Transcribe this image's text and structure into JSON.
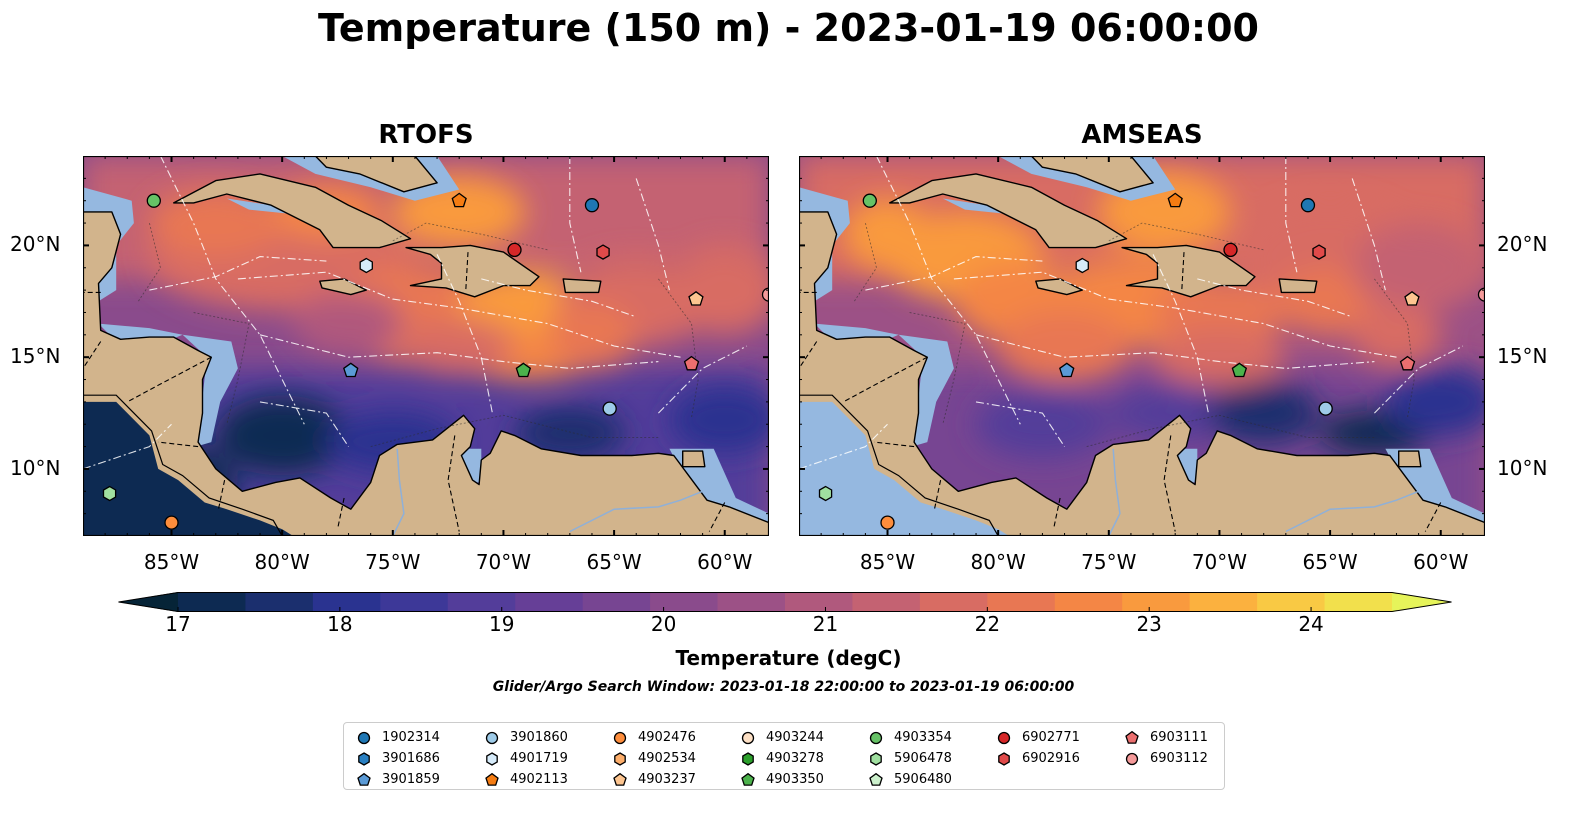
{
  "title": "Temperature (150 m) - 2023-01-19 06:00:00",
  "panels": [
    {
      "title": "RTOFS",
      "variant": "rtofs"
    },
    {
      "title": "AMSEAS",
      "variant": "amseas"
    }
  ],
  "map_axes": {
    "lon_range": [
      -89,
      -58
    ],
    "lat_range": [
      7,
      24
    ],
    "lon_ticks": [
      {
        "lon": -85,
        "label": "85°W"
      },
      {
        "lon": -80,
        "label": "80°W"
      },
      {
        "lon": -75,
        "label": "75°W"
      },
      {
        "lon": -70,
        "label": "70°W"
      },
      {
        "lon": -65,
        "label": "65°W"
      },
      {
        "lon": -60,
        "label": "60°W"
      }
    ],
    "lat_ticks": [
      {
        "lat": 20,
        "label": "20°N"
      },
      {
        "lat": 15,
        "label": "15°N"
      },
      {
        "lat": 10,
        "label": "10°N"
      }
    ]
  },
  "colorbar": {
    "title": "Temperature (degC)",
    "vmin": 17,
    "vmax": 24.5,
    "step": 0.5,
    "extend": "both",
    "ticks": [
      {
        "value": 17,
        "label": "17"
      },
      {
        "value": 18,
        "label": "18"
      },
      {
        "value": 19,
        "label": "19"
      },
      {
        "value": 20,
        "label": "20"
      },
      {
        "value": 21,
        "label": "21"
      },
      {
        "value": 22,
        "label": "22"
      },
      {
        "value": 23,
        "label": "23"
      },
      {
        "value": 24,
        "label": "24"
      }
    ],
    "colors": [
      "#062437",
      "#0d2a52",
      "#1b2f6e",
      "#2a3390",
      "#3d3898",
      "#533d9a",
      "#663f97",
      "#774592",
      "#8a4b8c",
      "#9c5186",
      "#b0597d",
      "#c46272",
      "#d86c63",
      "#e87753",
      "#f48645",
      "#f99a3e",
      "#fbb13f",
      "#f9c944",
      "#f2e04c",
      "#e6f45a"
    ]
  },
  "colors": {
    "land": "#d2b48c",
    "shelf": "#95b8e0",
    "coast": "#000000",
    "boundary": "#ffffff"
  },
  "search_window": "Glider/Argo Search Window: 2023-01-18 22:00:00 to 2023-01-19 06:00:00",
  "legend": {
    "columns": [
      [
        {
          "id": "1902314",
          "marker": "circle",
          "color": "#1f77b4"
        },
        {
          "id": "3901686",
          "marker": "hexagon",
          "color": "#2a80c2"
        },
        {
          "id": "3901859",
          "marker": "pentagon",
          "color": "#5a9ad6"
        }
      ],
      [
        {
          "id": "3901860",
          "marker": "circle",
          "color": "#9ecbe8"
        },
        {
          "id": "4901719",
          "marker": "hexagon",
          "color": "#d6ebfa"
        },
        {
          "id": "4902113",
          "marker": "pentagon",
          "color": "#f57c12"
        }
      ],
      [
        {
          "id": "4902476",
          "marker": "circle",
          "color": "#fd8d3c"
        },
        {
          "id": "4902534",
          "marker": "hexagon",
          "color": "#fdae6b"
        },
        {
          "id": "4903237",
          "marker": "pentagon",
          "color": "#fdc590"
        }
      ],
      [
        {
          "id": "4903244",
          "marker": "circle",
          "color": "#fde0c5"
        },
        {
          "id": "4903278",
          "marker": "hexagon",
          "color": "#2ca02c"
        },
        {
          "id": "4903350",
          "marker": "pentagon",
          "color": "#4cb24c"
        }
      ],
      [
        {
          "id": "4903354",
          "marker": "circle",
          "color": "#66c266"
        },
        {
          "id": "5906478",
          "marker": "hexagon",
          "color": "#a0e0a0"
        },
        {
          "id": "5906480",
          "marker": "pentagon",
          "color": "#ccf0cc"
        }
      ],
      [
        {
          "id": "6902771",
          "marker": "circle",
          "color": "#d62728"
        },
        {
          "id": "6902916",
          "marker": "hexagon",
          "color": "#e04a4a"
        }
      ],
      [
        {
          "id": "6903111",
          "marker": "pentagon",
          "color": "#eb6f6f"
        },
        {
          "id": "6903112",
          "marker": "circle",
          "color": "#f59a9a"
        }
      ]
    ]
  },
  "floats": [
    {
      "id": "4903354",
      "lon": -85.8,
      "lat": 22.0,
      "marker": "circle",
      "color": "#66c266"
    },
    {
      "id": "4902113",
      "lon": -72.0,
      "lat": 22.0,
      "marker": "pentagon",
      "color": "#f57c12"
    },
    {
      "id": "1902314",
      "lon": -66.0,
      "lat": 21.8,
      "marker": "circle",
      "color": "#1f77b4"
    },
    {
      "id": "6902771",
      "lon": -69.5,
      "lat": 19.8,
      "marker": "circle",
      "color": "#d62728"
    },
    {
      "id": "6902916",
      "lon": -65.5,
      "lat": 19.7,
      "marker": "hexagon",
      "color": "#e04a4a"
    },
    {
      "id": "4901719",
      "lon": -76.2,
      "lat": 19.1,
      "marker": "hexagon",
      "color": "#d6ebfa"
    },
    {
      "id": "4903237",
      "lon": -61.3,
      "lat": 17.6,
      "marker": "pentagon",
      "color": "#fdc590"
    },
    {
      "id": "6903112",
      "lon": -58.0,
      "lat": 17.8,
      "marker": "circle",
      "color": "#f59a9a"
    },
    {
      "id": "6903111",
      "lon": -61.5,
      "lat": 14.7,
      "marker": "pentagon",
      "color": "#eb6f6f"
    },
    {
      "id": "3901859",
      "lon": -76.9,
      "lat": 14.4,
      "marker": "pentagon",
      "color": "#5a9ad6"
    },
    {
      "id": "4903350",
      "lon": -69.1,
      "lat": 14.4,
      "marker": "pentagon",
      "color": "#4cb24c"
    },
    {
      "id": "3901860",
      "lon": -65.2,
      "lat": 12.7,
      "marker": "circle",
      "color": "#9ecbe8"
    },
    {
      "id": "5906478",
      "lon": -87.8,
      "lat": 8.9,
      "marker": "hexagon",
      "color": "#a0e0a0"
    },
    {
      "id": "4902476",
      "lon": -85.0,
      "lat": 7.6,
      "marker": "circle",
      "color": "#fd8d3c"
    }
  ]
}
